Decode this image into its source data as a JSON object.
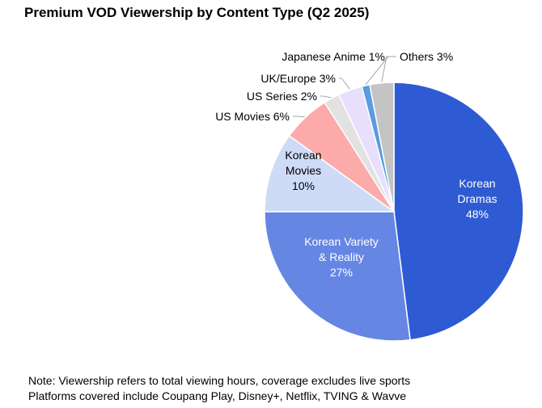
{
  "chart_data": {
    "type": "pie",
    "title": "Premium VOD Viewership by Content Type (Q2 2025)",
    "slices": [
      {
        "name": "Korean Dramas",
        "value": 48,
        "color": "#2e5bd4",
        "label_lines": [
          "Korean",
          "Dramas",
          "48%"
        ],
        "label_inside": true,
        "text_color": "#ffffff"
      },
      {
        "name": "Korean Variety & Reality",
        "value": 27,
        "color": "#6686e3",
        "label_lines": [
          "Korean Variety",
          "& Reality",
          "27%"
        ],
        "label_inside": true,
        "text_color": "#ffffff"
      },
      {
        "name": "Korean Movies",
        "value": 10,
        "color": "#cddbf7",
        "label_lines": [
          "Korean",
          "Movies",
          "10%"
        ],
        "label_inside": true,
        "text_color": "#000000"
      },
      {
        "name": "US Movies",
        "value": 6,
        "color": "#fcaaaa",
        "label_lines": [
          "US Movies 6%"
        ],
        "label_inside": false,
        "text_color": "#000000"
      },
      {
        "name": "US Series",
        "value": 2,
        "color": "#e2e2e2",
        "label_lines": [
          "US Series 2%"
        ],
        "label_inside": false,
        "text_color": "#000000"
      },
      {
        "name": "UK/Europe",
        "value": 3,
        "color": "#e7dffc",
        "label_lines": [
          "UK/Europe 3%"
        ],
        "label_inside": false,
        "text_color": "#000000"
      },
      {
        "name": "Japanese Anime",
        "value": 1,
        "color": "#5b9be0",
        "label_lines": [
          "Japanese Anime 1%"
        ],
        "label_inside": false,
        "text_color": "#000000"
      },
      {
        "name": "Others",
        "value": 3,
        "color": "#c4c4c4",
        "label_lines": [
          "Others 3%"
        ],
        "label_inside": false,
        "text_color": "#000000"
      }
    ]
  },
  "notes": [
    "Note: Viewership refers to total viewing hours, coverage excludes live sports",
    "Platforms covered include Coupang Play, Disney+, Netflix, TVING & Wavve"
  ]
}
